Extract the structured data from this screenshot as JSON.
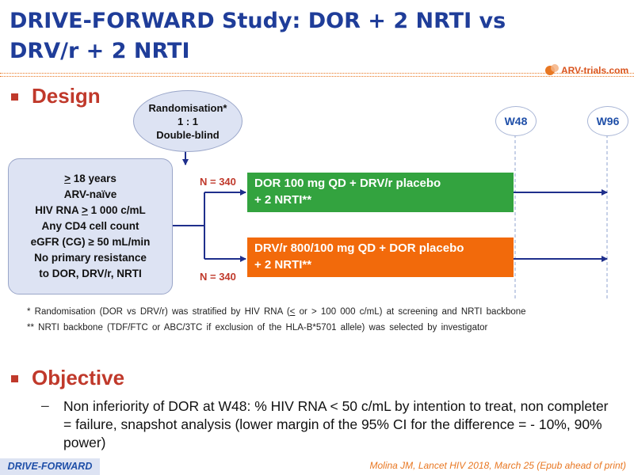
{
  "title": "DRIVE-FORWARD Study: DOR + 2 NRTI vs DRV/r + 2 NRTI",
  "logo_text": "ARV-trials.com",
  "sections": {
    "design": "Design",
    "objective": "Objective"
  },
  "randomisation": {
    "line1": "Randomisation*",
    "line2": "1 : 1",
    "line3": "Double-blind"
  },
  "criteria": {
    "age_sym": ">",
    "age_rest": " 18 years",
    "naive": "ARV-naïve",
    "hiv_pre": "HIV RNA ",
    "hiv_sym": ">",
    "hiv_post": " 1 000 c/mL",
    "cd4": "Any CD4 cell count",
    "egfr": "eGFR (CG) ≥ 50 mL/min",
    "res1": "No primary resistance",
    "res2": "to DOR, DRV/r, NRTI"
  },
  "arms": [
    {
      "n": "N = 340",
      "line1": "DOR 100 mg QD + DRV/r placebo",
      "line2": "+ 2 NRTI**",
      "color": "#33a33f"
    },
    {
      "n": "N = 340",
      "line1": "DRV/r 800/100 mg QD + DOR placebo",
      "line2": "+ 2 NRTI**",
      "color": "#f26a0b"
    }
  ],
  "timepoints": [
    "W48",
    "W96"
  ],
  "footnotes": {
    "f1_pre": "* Randomisation (DOR vs DRV/r) was stratified by HIV RNA (",
    "f1_lt": "<",
    "f1_post": " or > 100 000 c/mL) at screening and NRTI backbone",
    "f2": "** NRTI backbone (TDF/FTC or ABC/3TC if exclusion of the HLA-B*5701 allele) was selected by investigator"
  },
  "objective_dash": "–",
  "objective_text": "Non inferiority of DOR at W48: % HIV RNA < 50 c/mL by intention to treat, non completer = failure, snapshot analysis (lower margin of the 95% CI for the difference = - 10%, 90% power)",
  "study_tag": "DRIVE-FORWARD",
  "reference": "Molina JM, Lancet HIV 2018, March 25 (Epub ahead of print)",
  "colors": {
    "title": "#1f3d99",
    "accent": "#c0392b",
    "box": "#dde3f3",
    "arrow": "#1f2f8c"
  }
}
